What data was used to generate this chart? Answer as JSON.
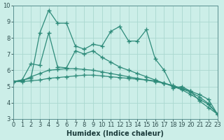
{
  "xlabel": "Humidex (Indice chaleur)",
  "x": [
    0,
    1,
    2,
    3,
    4,
    5,
    6,
    7,
    8,
    9,
    10,
    11,
    12,
    13,
    14,
    15,
    16,
    17,
    18,
    19,
    20,
    21,
    22,
    23
  ],
  "line1": [
    5.3,
    5.4,
    5.5,
    8.3,
    9.7,
    8.9,
    8.9,
    7.5,
    7.3,
    7.6,
    7.5,
    8.4,
    8.7,
    7.8,
    7.8,
    8.5,
    6.7,
    6.0,
    4.9,
    5.0,
    4.7,
    4.1,
    3.7,
    3.3
  ],
  "line2": [
    5.3,
    5.4,
    6.4,
    6.3,
    8.3,
    6.2,
    6.15,
    7.2,
    7.0,
    7.2,
    6.8,
    6.5,
    6.2,
    6.0,
    5.8,
    5.6,
    5.4,
    5.2,
    5.0,
    4.8,
    4.5,
    4.2,
    3.9,
    3.3
  ],
  "line3": [
    5.3,
    5.35,
    5.6,
    5.8,
    6.0,
    6.05,
    6.1,
    6.1,
    6.05,
    6.0,
    5.9,
    5.8,
    5.7,
    5.6,
    5.5,
    5.4,
    5.3,
    5.2,
    5.05,
    4.9,
    4.7,
    4.5,
    4.2,
    3.3
  ],
  "line4": [
    5.3,
    5.3,
    5.35,
    5.4,
    5.5,
    5.55,
    5.6,
    5.65,
    5.7,
    5.7,
    5.65,
    5.6,
    5.55,
    5.5,
    5.45,
    5.4,
    5.35,
    5.2,
    5.05,
    4.85,
    4.65,
    4.35,
    3.95,
    3.3
  ],
  "line_color": "#2e8b7a",
  "bg_color": "#cceee8",
  "grid_color": "#aad8d0",
  "xlim": [
    0,
    23
  ],
  "ylim": [
    3,
    10
  ],
  "yticks": [
    3,
    4,
    5,
    6,
    7,
    8,
    9,
    10
  ],
  "xticks": [
    0,
    1,
    2,
    3,
    4,
    5,
    6,
    7,
    8,
    9,
    10,
    11,
    12,
    13,
    14,
    15,
    16,
    17,
    18,
    19,
    20,
    21,
    22,
    23
  ],
  "xlabel_fontsize": 7,
  "tick_fontsize": 6
}
